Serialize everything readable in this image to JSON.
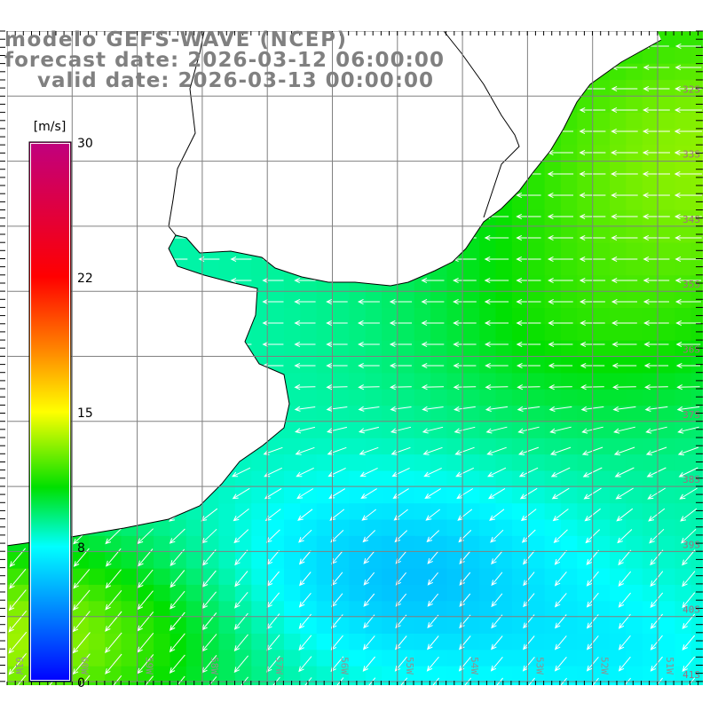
{
  "header": {
    "model": "modelo GEFS-WAVE (NCEP)",
    "forecast": "forecast date: 2026-03-12 06:00:00",
    "valid": "valid date: 2026-03-13 00:00:00"
  },
  "colorbar": {
    "unit": "[m/s]",
    "labels": [
      "30",
      "22",
      "15",
      "8",
      "0"
    ],
    "min": 0,
    "max": 30,
    "colors": [
      "#0000ff",
      "#00ffff",
      "#00e000",
      "#ffff00",
      "#ff8000",
      "#ff0000",
      "#c0007f"
    ]
  },
  "map": {
    "variable": "wind speed with direction arrows",
    "lat_labels": [
      "32S",
      "33S",
      "34S",
      "35S",
      "36S",
      "37S",
      "38S",
      "39S",
      "40S",
      "41S"
    ],
    "lon_labels": [
      "61W",
      "60W",
      "59W",
      "58W",
      "57W",
      "56W",
      "55W",
      "54W",
      "53W",
      "52W",
      "51W"
    ],
    "coastline_color": "#000000",
    "grid_color": "#808080",
    "land_color": "#ffffff"
  }
}
